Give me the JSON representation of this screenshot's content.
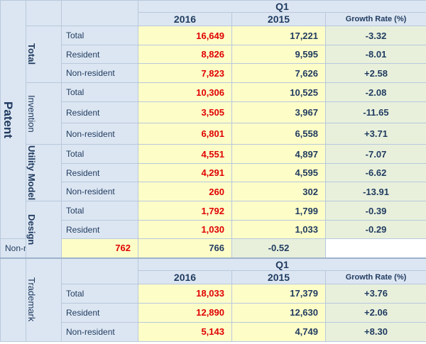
{
  "patent": {
    "label": "Patent",
    "header": {
      "quarter": "Q1",
      "year1": "2016",
      "year2": "2015",
      "growth": "Growth Rate (%)"
    },
    "groups": [
      {
        "label": "Total",
        "rows": [
          {
            "label": "Total",
            "y2016": "16,649",
            "y2015": "17,221",
            "growth": "-3.32"
          },
          {
            "label": "Resident",
            "y2016": "8,826",
            "y2015": "9,595",
            "growth": "-8.01"
          },
          {
            "label": "Non-resident",
            "y2016": "7,823",
            "y2015": "7,626",
            "growth": "+2.58"
          }
        ]
      },
      {
        "label": "Invention",
        "rows": [
          {
            "label": "Total",
            "y2016": "10,306",
            "y2015": "10,525",
            "growth": "-2.08"
          },
          {
            "label": "Resident",
            "y2016": "3,505",
            "y2015": "3,967",
            "growth": "-11.65"
          },
          {
            "label": "Non-resident",
            "y2016": "6,801",
            "y2015": "6,558",
            "growth": "+3.71"
          }
        ]
      },
      {
        "label": "Utility Model",
        "rows": [
          {
            "label": "Total",
            "y2016": "4,551",
            "y2015": "4,897",
            "growth": "-7.07"
          },
          {
            "label": "Resident",
            "y2016": "4,291",
            "y2015": "4,595",
            "growth": "-6.62"
          },
          {
            "label": "Non-resident",
            "y2016": "260",
            "y2015": "302",
            "growth": "-13.91"
          }
        ]
      },
      {
        "label": "Design",
        "rows": [
          {
            "label": "Total",
            "y2016": "1,792",
            "y2015": "1,799",
            "growth": "-0.39"
          },
          {
            "label": "Resident",
            "y2016": "1,030",
            "y2015": "1,033",
            "growth": "-0.29"
          },
          {
            "label": "Non-resident",
            "y2016": "762",
            "y2015": "766",
            "growth": "-0.52"
          }
        ]
      }
    ]
  },
  "trademark": {
    "label": "Trademark",
    "header": {
      "quarter": "Q1",
      "year1": "2016",
      "year2": "2015",
      "growth": "Growth Rate (%)"
    },
    "rows": [
      {
        "label": "Total",
        "y2016": "18,033",
        "y2015": "17,379",
        "growth": "+3.76"
      },
      {
        "label": "Resident",
        "y2016": "12,890",
        "y2015": "12,630",
        "growth": "+2.06"
      },
      {
        "label": "Non-resident",
        "y2016": "5,143",
        "y2015": "4,749",
        "growth": "+8.30"
      }
    ]
  },
  "colors": {
    "header_bg": "#dce6f2",
    "value_bg": "#fdfdc8",
    "growth_bg": "#e8f0dc",
    "value_red": "#e00000",
    "text_navy": "#1f3a5f"
  }
}
